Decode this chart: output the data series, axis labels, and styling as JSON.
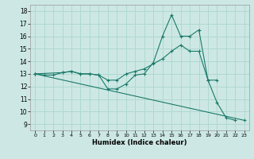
{
  "xlabel": "Humidex (Indice chaleur)",
  "bg_color": "#cde8e4",
  "grid_color": "#b0d8d0",
  "line_color": "#1a7a6a",
  "xlim": [
    -0.5,
    23.5
  ],
  "ylim": [
    8.5,
    18.5
  ],
  "xticks": [
    0,
    1,
    2,
    3,
    4,
    5,
    6,
    7,
    8,
    9,
    10,
    11,
    12,
    13,
    14,
    15,
    16,
    17,
    18,
    19,
    20,
    21,
    22,
    23
  ],
  "yticks": [
    9,
    10,
    11,
    12,
    13,
    14,
    15,
    16,
    17,
    18
  ],
  "line1_x": [
    0,
    1,
    2,
    3,
    4,
    5,
    6,
    7,
    8,
    9,
    10,
    11,
    12,
    13,
    14,
    15,
    16,
    17,
    18,
    19,
    20,
    21,
    22
  ],
  "line1_y": [
    13,
    12.9,
    12.9,
    13.1,
    13.2,
    13.0,
    13.0,
    12.9,
    11.8,
    11.8,
    12.2,
    12.9,
    13.0,
    13.9,
    16.0,
    17.7,
    16.0,
    16.0,
    16.5,
    12.5,
    10.7,
    9.5,
    9.3
  ],
  "line2_x": [
    0,
    3,
    4,
    5,
    6,
    7,
    8,
    9,
    10,
    11,
    12,
    13,
    14,
    15,
    16,
    17,
    18,
    19,
    20
  ],
  "line2_y": [
    13,
    13.1,
    13.2,
    13.0,
    13.0,
    12.9,
    12.5,
    12.5,
    13.0,
    13.2,
    13.4,
    13.8,
    14.2,
    14.8,
    15.3,
    14.8,
    14.8,
    12.5,
    12.5
  ],
  "line3_x": [
    0,
    23
  ],
  "line3_y": [
    13,
    9.3
  ]
}
